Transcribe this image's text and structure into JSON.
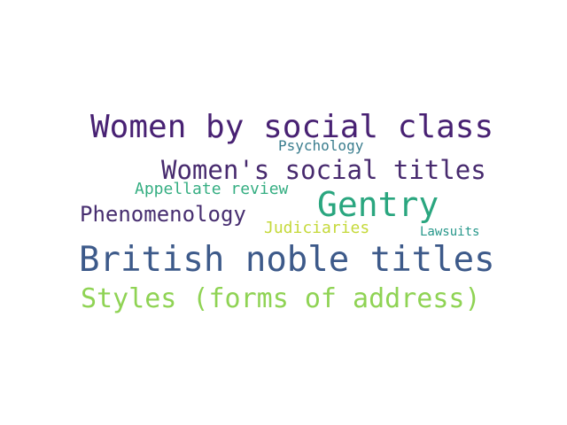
{
  "words": [
    {
      "text": "Women by social class",
      "color": "#482173"
    },
    {
      "text": "Psychology",
      "color": "#3a7d8e"
    },
    {
      "text": "Women's social titles",
      "color": "#472a6e"
    },
    {
      "text": "Appellate review",
      "color": "#35ae82"
    },
    {
      "text": "Gentry",
      "color": "#2aa67f"
    },
    {
      "text": "Phenomenology",
      "color": "#472e70"
    },
    {
      "text": "Judiciaries",
      "color": "#c5d93a"
    },
    {
      "text": "Lawsuits",
      "color": "#26978a"
    },
    {
      "text": "British noble titles",
      "color": "#3d5a8a"
    },
    {
      "text": "Styles (forms of address)",
      "color": "#8fd354"
    }
  ]
}
